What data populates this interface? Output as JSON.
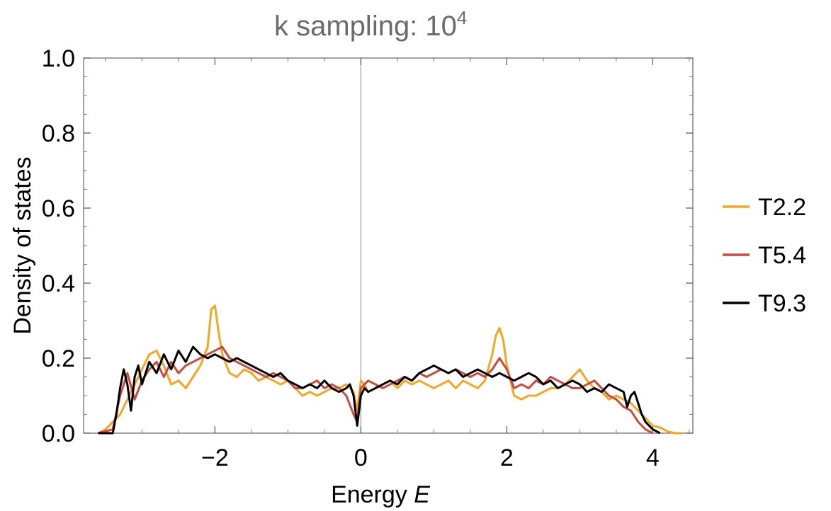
{
  "chart_data": {
    "type": "line",
    "title": {
      "base": "k sampling: 10",
      "superscript": "4"
    },
    "xlabel": {
      "text": "Energy ",
      "italic": "E"
    },
    "ylabel": "Density of states",
    "xlim": [
      -3.8,
      4.55
    ],
    "ylim": [
      0,
      1.0
    ],
    "xticks": [
      -2,
      0,
      2,
      4
    ],
    "xtick_labels": [
      "−2",
      "0",
      "2",
      "4"
    ],
    "yticks": [
      0.0,
      0.2,
      0.4,
      0.6,
      0.8,
      1.0
    ],
    "ytick_labels": [
      "0.0",
      "0.2",
      "0.4",
      "0.6",
      "0.8",
      "1.0"
    ],
    "vertical_reference_line_x": 0,
    "legend_position": "right",
    "grid": false,
    "series": [
      {
        "name": "T2.2",
        "color": "#f5a623",
        "x": [
          -3.6,
          -3.5,
          -3.4,
          -3.3,
          -3.2,
          -3.1,
          -3.0,
          -2.9,
          -2.8,
          -2.7,
          -2.6,
          -2.5,
          -2.4,
          -2.3,
          -2.2,
          -2.1,
          -2.05,
          -2.0,
          -1.95,
          -1.9,
          -1.8,
          -1.7,
          -1.6,
          -1.5,
          -1.4,
          -1.3,
          -1.2,
          -1.1,
          -1.0,
          -0.9,
          -0.8,
          -0.7,
          -0.6,
          -0.5,
          -0.4,
          -0.3,
          -0.2,
          -0.1,
          -0.05,
          0.0,
          0.05,
          0.1,
          0.2,
          0.3,
          0.4,
          0.5,
          0.6,
          0.7,
          0.8,
          0.9,
          1.0,
          1.1,
          1.2,
          1.3,
          1.4,
          1.5,
          1.6,
          1.7,
          1.8,
          1.85,
          1.9,
          1.95,
          2.0,
          2.1,
          2.2,
          2.3,
          2.4,
          2.5,
          2.6,
          2.7,
          2.8,
          2.9,
          3.0,
          3.1,
          3.2,
          3.3,
          3.4,
          3.5,
          3.6,
          3.7,
          3.8,
          3.9,
          4.0,
          4.1,
          4.2,
          4.3,
          4.4
        ],
        "values": [
          0.0,
          0.01,
          0.03,
          0.05,
          0.09,
          0.13,
          0.17,
          0.21,
          0.22,
          0.18,
          0.13,
          0.14,
          0.12,
          0.15,
          0.18,
          0.23,
          0.33,
          0.34,
          0.27,
          0.21,
          0.16,
          0.15,
          0.17,
          0.16,
          0.14,
          0.15,
          0.14,
          0.13,
          0.14,
          0.12,
          0.1,
          0.11,
          0.1,
          0.11,
          0.12,
          0.12,
          0.13,
          0.11,
          0.06,
          0.14,
          0.13,
          0.11,
          0.12,
          0.13,
          0.14,
          0.12,
          0.14,
          0.13,
          0.14,
          0.13,
          0.12,
          0.13,
          0.14,
          0.12,
          0.14,
          0.13,
          0.12,
          0.14,
          0.21,
          0.26,
          0.28,
          0.25,
          0.18,
          0.1,
          0.09,
          0.1,
          0.1,
          0.11,
          0.12,
          0.12,
          0.13,
          0.15,
          0.17,
          0.14,
          0.12,
          0.11,
          0.09,
          0.1,
          0.09,
          0.08,
          0.06,
          0.04,
          0.02,
          0.015,
          0.005,
          0.0,
          0.0
        ]
      },
      {
        "name": "T5.4",
        "color": "#c84b3c",
        "x": [
          -3.6,
          -3.4,
          -3.3,
          -3.2,
          -3.1,
          -3.0,
          -2.9,
          -2.8,
          -2.7,
          -2.6,
          -2.5,
          -2.4,
          -2.3,
          -2.2,
          -2.1,
          -2.0,
          -1.9,
          -1.8,
          -1.7,
          -1.6,
          -1.5,
          -1.4,
          -1.3,
          -1.2,
          -1.1,
          -1.0,
          -0.9,
          -0.8,
          -0.7,
          -0.6,
          -0.5,
          -0.4,
          -0.3,
          -0.2,
          -0.1,
          -0.05,
          0.0,
          0.05,
          0.1,
          0.2,
          0.3,
          0.4,
          0.5,
          0.6,
          0.7,
          0.8,
          0.9,
          1.0,
          1.1,
          1.2,
          1.3,
          1.4,
          1.5,
          1.6,
          1.7,
          1.8,
          1.9,
          2.0,
          2.1,
          2.2,
          2.3,
          2.4,
          2.5,
          2.6,
          2.7,
          2.8,
          2.9,
          3.0,
          3.1,
          3.2,
          3.3,
          3.4,
          3.5,
          3.6,
          3.7,
          3.8,
          3.9,
          4.0
        ],
        "values": [
          0.0,
          0.01,
          0.1,
          0.16,
          0.09,
          0.14,
          0.17,
          0.19,
          0.15,
          0.19,
          0.16,
          0.18,
          0.19,
          0.2,
          0.21,
          0.22,
          0.23,
          0.2,
          0.19,
          0.18,
          0.17,
          0.16,
          0.15,
          0.16,
          0.15,
          0.14,
          0.12,
          0.12,
          0.13,
          0.14,
          0.12,
          0.13,
          0.12,
          0.1,
          0.05,
          0.03,
          0.12,
          0.13,
          0.14,
          0.13,
          0.12,
          0.13,
          0.14,
          0.15,
          0.14,
          0.16,
          0.15,
          0.16,
          0.17,
          0.16,
          0.17,
          0.16,
          0.15,
          0.16,
          0.15,
          0.17,
          0.2,
          0.17,
          0.12,
          0.13,
          0.12,
          0.14,
          0.13,
          0.15,
          0.14,
          0.13,
          0.12,
          0.12,
          0.13,
          0.14,
          0.12,
          0.1,
          0.09,
          0.07,
          0.06,
          0.03,
          0.01,
          0.0
        ]
      },
      {
        "name": "T9.3",
        "color": "#000000",
        "x": [
          -3.6,
          -3.4,
          -3.35,
          -3.3,
          -3.25,
          -3.2,
          -3.15,
          -3.1,
          -3.05,
          -3.0,
          -2.9,
          -2.8,
          -2.7,
          -2.6,
          -2.5,
          -2.4,
          -2.3,
          -2.2,
          -2.1,
          -2.0,
          -1.9,
          -1.8,
          -1.7,
          -1.6,
          -1.5,
          -1.4,
          -1.3,
          -1.2,
          -1.1,
          -1.0,
          -0.9,
          -0.8,
          -0.7,
          -0.6,
          -0.5,
          -0.4,
          -0.3,
          -0.2,
          -0.15,
          -0.1,
          -0.05,
          0.0,
          0.05,
          0.1,
          0.2,
          0.3,
          0.4,
          0.5,
          0.6,
          0.7,
          0.8,
          0.9,
          1.0,
          1.1,
          1.2,
          1.3,
          1.4,
          1.5,
          1.6,
          1.7,
          1.8,
          1.9,
          2.0,
          2.1,
          2.2,
          2.3,
          2.4,
          2.5,
          2.6,
          2.7,
          2.8,
          2.9,
          3.0,
          3.1,
          3.2,
          3.3,
          3.4,
          3.5,
          3.6,
          3.65,
          3.7,
          3.75,
          3.8,
          3.85,
          3.9,
          4.0,
          4.1
        ],
        "values": [
          0.0,
          0.0,
          0.05,
          0.12,
          0.17,
          0.13,
          0.06,
          0.15,
          0.18,
          0.13,
          0.19,
          0.16,
          0.21,
          0.17,
          0.22,
          0.19,
          0.23,
          0.21,
          0.2,
          0.21,
          0.2,
          0.19,
          0.2,
          0.19,
          0.18,
          0.17,
          0.16,
          0.15,
          0.16,
          0.14,
          0.13,
          0.12,
          0.13,
          0.12,
          0.14,
          0.12,
          0.11,
          0.12,
          0.13,
          0.1,
          0.02,
          0.1,
          0.12,
          0.11,
          0.12,
          0.13,
          0.14,
          0.13,
          0.15,
          0.14,
          0.16,
          0.17,
          0.18,
          0.17,
          0.16,
          0.17,
          0.15,
          0.16,
          0.17,
          0.16,
          0.15,
          0.16,
          0.15,
          0.14,
          0.15,
          0.16,
          0.15,
          0.13,
          0.14,
          0.12,
          0.13,
          0.14,
          0.13,
          0.11,
          0.12,
          0.11,
          0.13,
          0.12,
          0.11,
          0.07,
          0.1,
          0.11,
          0.08,
          0.05,
          0.03,
          0.01,
          0.0
        ]
      }
    ]
  }
}
